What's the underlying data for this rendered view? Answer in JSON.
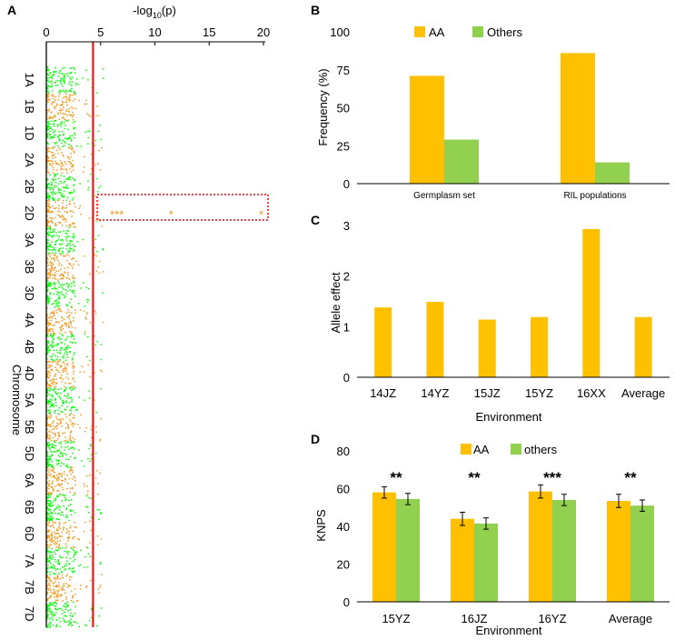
{
  "colors": {
    "aa": "#FFC000",
    "others": "#92D050",
    "green": "#00FF00",
    "orange": "#F29A1E",
    "threshold": "#FF0000",
    "box": "#FF0000"
  },
  "panels": {
    "a": "A",
    "b": "B",
    "c": "C",
    "d": "D"
  },
  "chart_data": [
    {
      "panel": "A",
      "type": "scatter",
      "title": "",
      "xlabel_pre": "-log",
      "xlabel_sub": "10",
      "xlabel_post": "(p)",
      "ylabel": "Chromosome",
      "xlim": [
        0,
        20
      ],
      "xticks": [
        "0",
        "5",
        "10",
        "15",
        "20"
      ],
      "threshold": 4.3,
      "chromosomes": [
        "1A",
        "1B",
        "1D",
        "2A",
        "2B",
        "2D",
        "3A",
        "3B",
        "3D",
        "4A",
        "4B",
        "4D",
        "5A",
        "5B",
        "5D",
        "6A",
        "6B",
        "6D",
        "7A",
        "7B",
        "7D"
      ],
      "highlight_chromosome": "2D",
      "highlight_points": [
        {
          "label": "***",
          "x": 6.5
        },
        {
          "label": "*",
          "x": 11.5
        },
        {
          "label": "*",
          "x": 19.8
        }
      ]
    },
    {
      "panel": "B",
      "type": "bar",
      "categories": [
        "Germplasm set",
        "RIL populations"
      ],
      "series": [
        {
          "name": "AA",
          "values": [
            71,
            86
          ]
        },
        {
          "name": "Others",
          "values": [
            29,
            14
          ]
        }
      ],
      "ylabel": "Frequency (%)",
      "ylim": [
        0,
        100
      ],
      "yticks": [
        "0",
        "25",
        "50",
        "75",
        "100"
      ]
    },
    {
      "panel": "C",
      "type": "bar",
      "categories": [
        "14JZ",
        "14YZ",
        "15JZ",
        "15YZ",
        "16XX",
        "Average"
      ],
      "values": [
        1.38,
        1.49,
        1.14,
        1.19,
        2.93,
        1.19
      ],
      "xlabel": "Environment",
      "ylabel": "Allele effect",
      "ylim": [
        0,
        3
      ],
      "yticks": [
        "0",
        "1",
        "2",
        "3"
      ]
    },
    {
      "panel": "D",
      "type": "bar",
      "categories": [
        "15YZ",
        "16JZ",
        "16YZ",
        "Average"
      ],
      "series": [
        {
          "name": "AA",
          "values": [
            58,
            44,
            58.5,
            53.5
          ],
          "errors": [
            3,
            3.5,
            3.5,
            3.5
          ]
        },
        {
          "name": "others",
          "values": [
            54.5,
            41.5,
            54,
            51
          ],
          "errors": [
            3,
            3,
            3,
            3
          ]
        }
      ],
      "significance": [
        "**",
        "**",
        "***",
        "**"
      ],
      "xlabel": "Environment",
      "ylabel": "KNPS",
      "ylim": [
        0,
        80
      ],
      "yticks": [
        "0",
        "20",
        "40",
        "60",
        "80"
      ]
    }
  ]
}
